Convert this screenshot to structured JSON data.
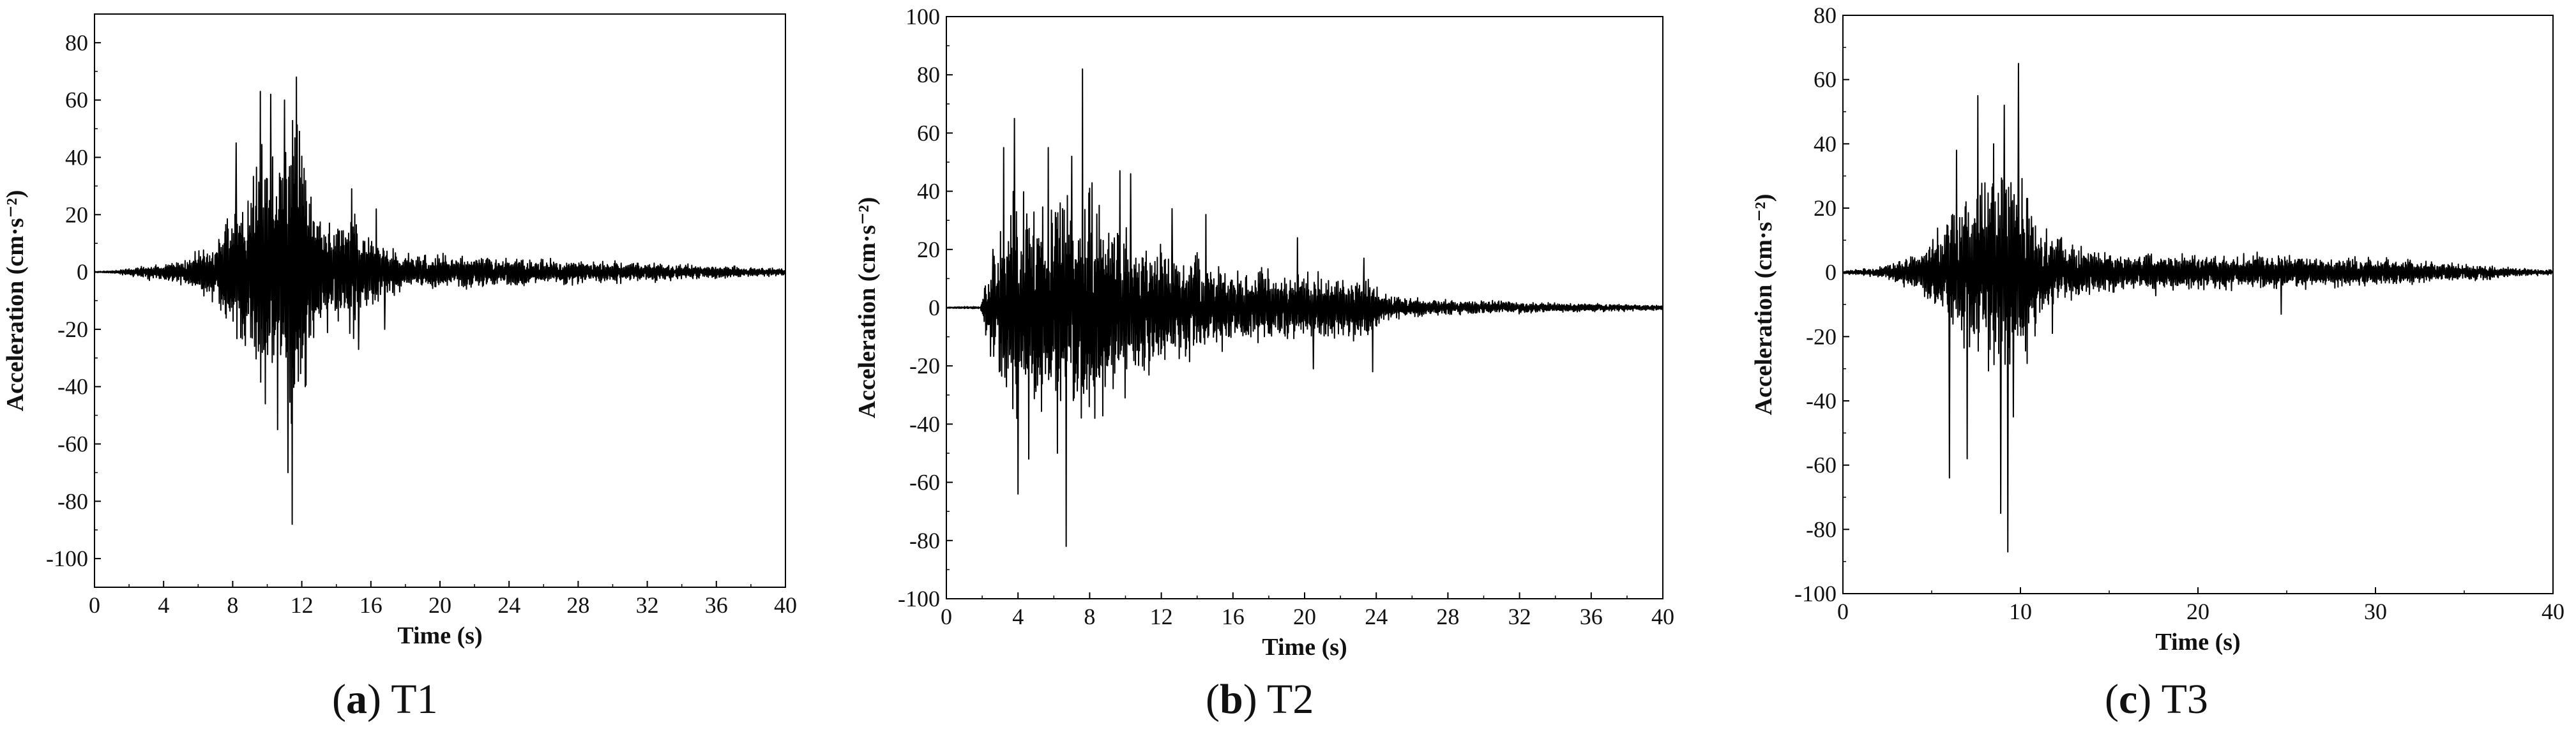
{
  "chart_data": [
    {
      "id": "a",
      "type": "line",
      "caption_letter": "a",
      "caption_name": "T1",
      "xlabel": "Time (s)",
      "ylabel": "Acceleration (cm·s⁻²)",
      "xlim": [
        0,
        40
      ],
      "ylim": [
        -110,
        90
      ],
      "xticks": [
        0,
        4,
        8,
        12,
        16,
        20,
        24,
        28,
        32,
        36,
        40
      ],
      "yticks": [
        -100,
        -80,
        -60,
        -40,
        -20,
        0,
        20,
        40,
        60,
        80
      ],
      "line_color": "#000000",
      "envelope": [
        [
          0,
          0.3
        ],
        [
          1,
          0.5
        ],
        [
          2,
          1.5
        ],
        [
          3,
          3
        ],
        [
          4,
          4
        ],
        [
          5,
          5
        ],
        [
          6,
          8
        ],
        [
          7,
          15
        ],
        [
          8,
          30
        ],
        [
          9,
          40
        ],
        [
          9.5,
          55
        ],
        [
          10,
          60
        ],
        [
          10.5,
          55
        ],
        [
          11,
          60
        ],
        [
          11.5,
          75
        ],
        [
          12,
          55
        ],
        [
          13,
          25
        ],
        [
          14,
          22
        ],
        [
          15,
          25
        ],
        [
          16,
          15
        ],
        [
          17,
          10
        ],
        [
          18,
          7
        ],
        [
          20,
          7
        ],
        [
          24,
          6
        ],
        [
          28,
          5
        ],
        [
          32,
          4
        ],
        [
          36,
          3
        ],
        [
          38,
          2
        ],
        [
          40,
          1.5
        ]
      ],
      "peaks": [
        [
          8.2,
          45
        ],
        [
          8.6,
          -18
        ],
        [
          9.6,
          63
        ],
        [
          9.9,
          -46
        ],
        [
          10.2,
          62
        ],
        [
          10.6,
          -55
        ],
        [
          11.0,
          60
        ],
        [
          11.2,
          -70
        ],
        [
          11.45,
          -88
        ],
        [
          11.7,
          68
        ],
        [
          12.2,
          -40
        ],
        [
          14.9,
          29
        ],
        [
          15.3,
          -27
        ],
        [
          16.3,
          22
        ],
        [
          16.8,
          -20
        ]
      ],
      "seed": 11
    },
    {
      "id": "b",
      "type": "line",
      "caption_letter": "b",
      "caption_name": "T2",
      "xlabel": "Time (s)",
      "ylabel": "Acceleration (cm·s⁻²)",
      "xlim": [
        0,
        40
      ],
      "ylim": [
        -100,
        100
      ],
      "xticks": [
        0,
        4,
        8,
        12,
        16,
        20,
        24,
        28,
        32,
        36,
        40
      ],
      "yticks": [
        -100,
        -80,
        -60,
        -40,
        -20,
        0,
        20,
        40,
        60,
        80,
        100
      ],
      "line_color": "#000000",
      "envelope": [
        [
          0,
          0.3
        ],
        [
          1.9,
          0.5
        ],
        [
          2.2,
          15
        ],
        [
          3,
          35
        ],
        [
          4,
          50
        ],
        [
          5,
          45
        ],
        [
          6,
          48
        ],
        [
          7,
          50
        ],
        [
          8,
          50
        ],
        [
          9,
          38
        ],
        [
          10,
          35
        ],
        [
          11,
          32
        ],
        [
          12,
          28
        ],
        [
          13,
          22
        ],
        [
          14,
          22
        ],
        [
          16,
          16
        ],
        [
          18,
          15
        ],
        [
          20,
          15
        ],
        [
          22,
          14
        ],
        [
          23.5,
          14
        ],
        [
          24.5,
          6
        ],
        [
          26,
          4
        ],
        [
          30,
          3
        ],
        [
          34,
          2
        ],
        [
          38,
          1.5
        ],
        [
          40,
          1
        ]
      ],
      "peaks": [
        [
          2.6,
          20
        ],
        [
          3.2,
          55
        ],
        [
          3.8,
          65
        ],
        [
          4.0,
          -64
        ],
        [
          4.6,
          -52
        ],
        [
          5.7,
          55
        ],
        [
          6.2,
          -50
        ],
        [
          6.7,
          -82
        ],
        [
          7.0,
          52
        ],
        [
          7.6,
          82
        ],
        [
          8.3,
          -38
        ],
        [
          9.7,
          47
        ],
        [
          10.3,
          46
        ],
        [
          12.6,
          34
        ],
        [
          14.5,
          32
        ],
        [
          19.6,
          24
        ],
        [
          20.5,
          -21
        ],
        [
          23.3,
          17
        ],
        [
          23.8,
          -22
        ]
      ],
      "seed": 23
    },
    {
      "id": "c",
      "type": "line",
      "caption_letter": "c",
      "caption_name": "T3",
      "xlabel": "Time (s)",
      "ylabel": "Acceleration (cm·s⁻²)",
      "xlim": [
        0,
        40
      ],
      "ylim": [
        -100,
        80
      ],
      "xticks": [
        0,
        10,
        20,
        30,
        40
      ],
      "yticks": [
        -100,
        -80,
        -60,
        -40,
        -20,
        0,
        20,
        40,
        60,
        80
      ],
      "line_color": "#000000",
      "envelope": [
        [
          0,
          0.5
        ],
        [
          2,
          2
        ],
        [
          3,
          4
        ],
        [
          4,
          7
        ],
        [
          5,
          12
        ],
        [
          6,
          25
        ],
        [
          7,
          35
        ],
        [
          8,
          40
        ],
        [
          9,
          40
        ],
        [
          10,
          40
        ],
        [
          11,
          20
        ],
        [
          12,
          14
        ],
        [
          14,
          9
        ],
        [
          16,
          8
        ],
        [
          20,
          7
        ],
        [
          24,
          7
        ],
        [
          28,
          6
        ],
        [
          32,
          5
        ],
        [
          36,
          3
        ],
        [
          38,
          1.5
        ],
        [
          40,
          1
        ]
      ],
      "peaks": [
        [
          6.0,
          -64
        ],
        [
          6.4,
          38
        ],
        [
          7.0,
          -58
        ],
        [
          7.6,
          55
        ],
        [
          8.5,
          40
        ],
        [
          8.9,
          -75
        ],
        [
          9.1,
          52
        ],
        [
          9.3,
          -87
        ],
        [
          9.6,
          -45
        ],
        [
          9.9,
          65
        ],
        [
          11.8,
          -19
        ],
        [
          24.7,
          -13
        ]
      ],
      "seed": 37
    }
  ]
}
